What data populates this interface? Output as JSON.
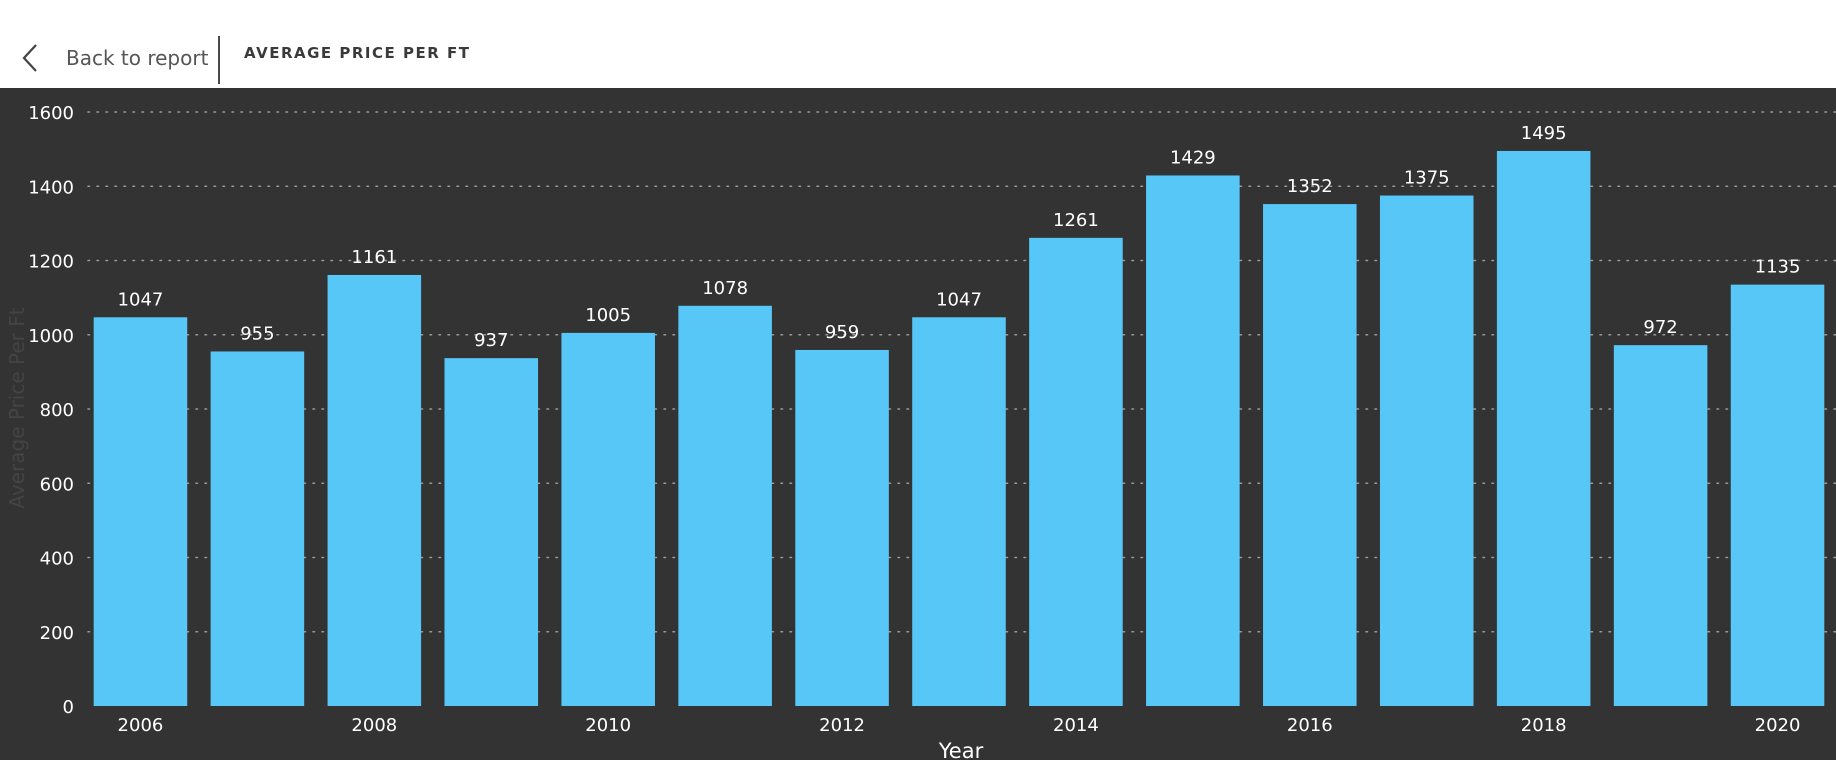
{
  "header": {
    "back_label": "Back to report",
    "title": "AVERAGE PRICE PER FT"
  },
  "colors": {
    "bar": "#57C7F7",
    "background": "#333333",
    "text": "#FFFFFF",
    "grid": "#9A9A9A"
  },
  "chart_data": {
    "type": "bar",
    "x": [
      2006,
      2007,
      2008,
      2009,
      2010,
      2011,
      2012,
      2013,
      2014,
      2015,
      2016,
      2017,
      2018,
      2019,
      2020
    ],
    "x_tick_labels": [
      "2006",
      "2008",
      "2010",
      "2012",
      "2014",
      "2016",
      "2018",
      "2020"
    ],
    "values": [
      1047,
      955,
      1161,
      937,
      1005,
      1078,
      959,
      1047,
      1261,
      1429,
      1352,
      1375,
      1495,
      972,
      1135
    ],
    "xlabel": "Year",
    "ylabel": "Average Price Per Ft",
    "ylim": [
      0,
      1600
    ],
    "y_ticks": [
      0,
      200,
      400,
      600,
      800,
      1000,
      1200,
      1400,
      1600
    ],
    "grid": true,
    "data_labels": true
  }
}
